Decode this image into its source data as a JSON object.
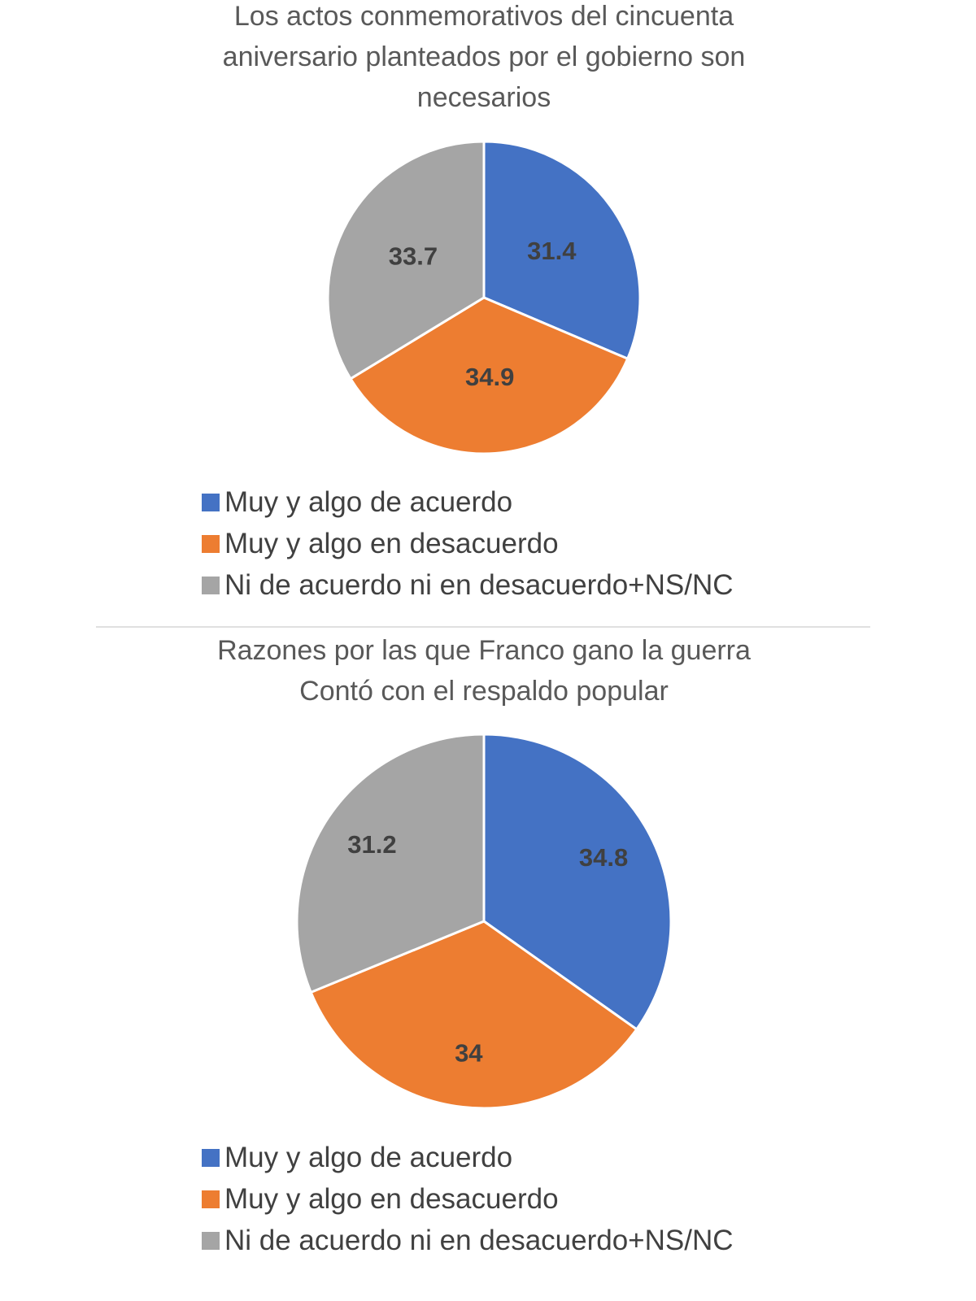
{
  "chart_data": [
    {
      "type": "pie",
      "title": "Los actos conmemorativos del cincuenta aniversario planteados por el gobierno son necesarios",
      "categories": [
        "Muy y algo de acuerdo",
        "Muy y algo en desacuerdo",
        "Ni de acuerdo ni en desacuerdo+NS/NC"
      ],
      "values": [
        31.4,
        34.9,
        33.7
      ],
      "colors": [
        "#4472c4",
        "#ed7d31",
        "#a5a5a5"
      ]
    },
    {
      "type": "pie",
      "title": "Razones por las que Franco gano la guerra",
      "subtitle": "Contó con el respaldo popular",
      "categories": [
        "Muy y algo de acuerdo",
        "Muy y algo en desacuerdo",
        "Ni de acuerdo ni en desacuerdo+NS/NC"
      ],
      "values": [
        34.8,
        34,
        31.2
      ],
      "colors": [
        "#4472c4",
        "#ed7d31",
        "#a5a5a5"
      ]
    }
  ]
}
